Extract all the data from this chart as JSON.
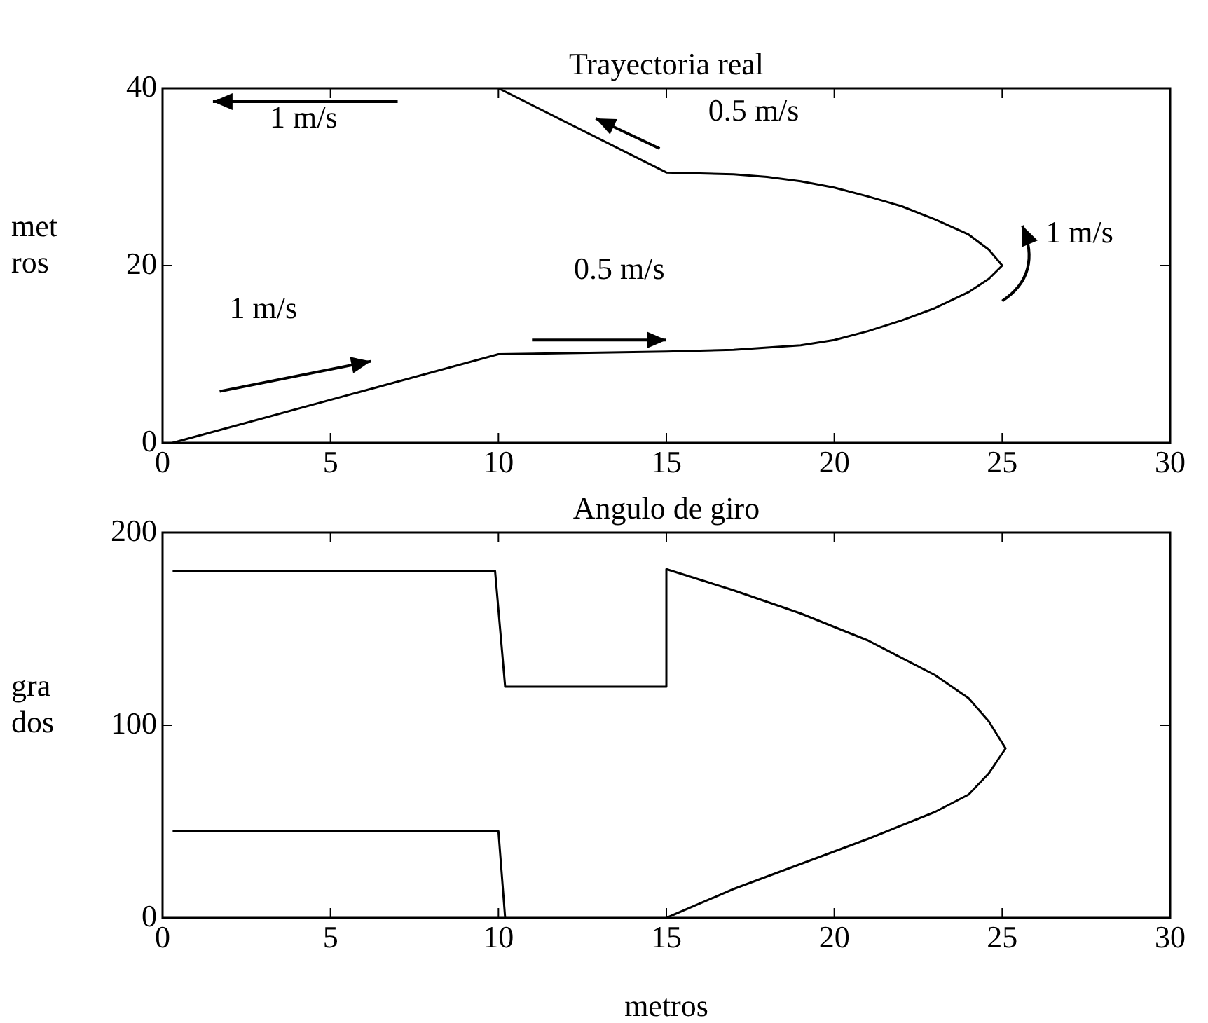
{
  "chart_data": [
    {
      "type": "line",
      "title": "Trayectoria real",
      "ylabel": "met\nros",
      "xlim": [
        0,
        30
      ],
      "xticks": [
        0,
        5,
        10,
        15,
        20,
        25,
        30
      ],
      "ylim": [
        0,
        40
      ],
      "yticks": [
        0,
        20,
        40
      ],
      "grid": false,
      "legend": false,
      "marker": "none",
      "line_style": "solid",
      "series": [
        {
          "color": "#000000",
          "x": [
            0.3,
            10,
            15,
            17,
            19,
            20,
            21,
            22,
            23,
            24,
            24.6,
            25,
            24.6,
            24,
            23,
            22,
            21,
            20,
            19,
            18,
            17,
            15,
            10
          ],
          "values": [
            0,
            10,
            10.3,
            10.5,
            11,
            11.6,
            12.6,
            13.8,
            15.2,
            17,
            18.5,
            20,
            21.8,
            23.5,
            25.2,
            26.7,
            27.8,
            28.8,
            29.5,
            30,
            30.3,
            30.5,
            40
          ]
        }
      ],
      "annotations": [
        "1 m/s",
        "0.5 m/s",
        "1 m/s",
        "0.5 m/s",
        "1 m/s"
      ]
    },
    {
      "type": "line",
      "title": "Angulo de giro",
      "xlabel": "metros",
      "ylabel": "gra\ndos",
      "xlim": [
        0,
        30
      ],
      "xticks": [
        0,
        5,
        10,
        15,
        20,
        25,
        30
      ],
      "ylim": [
        0,
        200
      ],
      "yticks": [
        0,
        100,
        200
      ],
      "grid": false,
      "legend": false,
      "marker": "none",
      "line_style": "solid",
      "series": [
        {
          "color": "#000000",
          "x": [
            0.3,
            9.9,
            10.2,
            15,
            15,
            17,
            19,
            21,
            23,
            24,
            24.6,
            25.1,
            24.6,
            24,
            23,
            21,
            19,
            17,
            15
          ],
          "values": [
            180,
            180,
            120,
            120,
            181,
            170,
            158,
            144,
            126,
            114,
            102,
            88,
            75,
            64,
            55,
            41,
            28,
            15,
            0
          ]
        },
        {
          "color": "#000000",
          "x": [
            0.3,
            10,
            10.2
          ],
          "values": [
            45,
            45,
            0
          ]
        }
      ]
    }
  ]
}
